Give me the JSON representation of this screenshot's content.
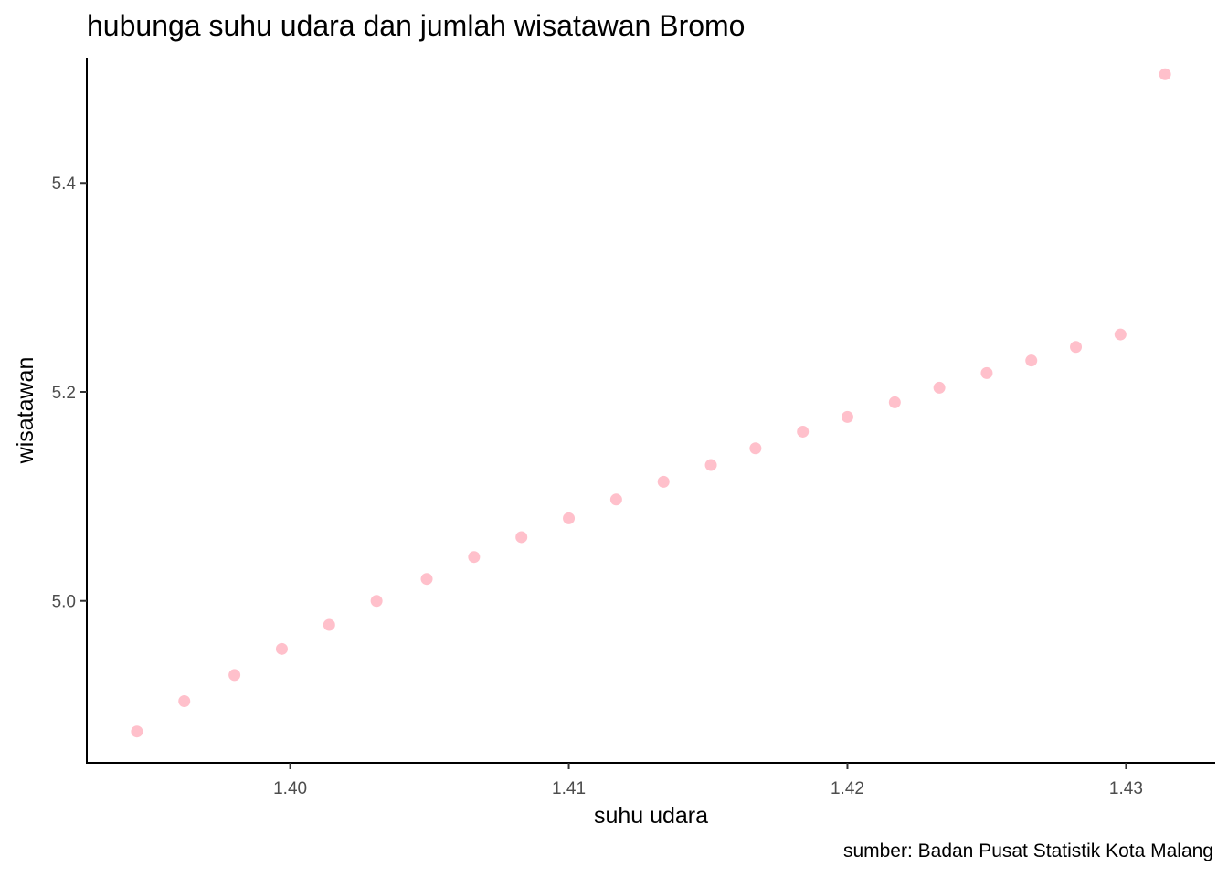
{
  "chart_data": {
    "type": "scatter",
    "title": "hubunga suhu udara dan jumlah wisatawan Bromo",
    "caption": "sumber: Badan Pusat Statistik Kota Malang",
    "xlabel": "suhu udara",
    "ylabel": "wisatawan",
    "xlim": [
      1.3927,
      1.4332
    ],
    "ylim": [
      4.845,
      5.52
    ],
    "xticks": [
      1.4,
      1.41,
      1.42,
      1.43
    ],
    "xtick_labels": [
      "1.40",
      "1.41",
      "1.42",
      "1.43"
    ],
    "yticks": [
      5.0,
      5.2,
      5.4
    ],
    "ytick_labels": [
      "5.0",
      "5.2",
      "5.4"
    ],
    "grid": false,
    "point_color": "#FFC0CB",
    "points": [
      {
        "x": 1.3945,
        "y": 4.875
      },
      {
        "x": 1.3962,
        "y": 4.904
      },
      {
        "x": 1.398,
        "y": 4.929
      },
      {
        "x": 1.3997,
        "y": 4.954
      },
      {
        "x": 1.4014,
        "y": 4.977
      },
      {
        "x": 1.4031,
        "y": 5.0
      },
      {
        "x": 1.4049,
        "y": 5.021
      },
      {
        "x": 1.4066,
        "y": 5.042
      },
      {
        "x": 1.4083,
        "y": 5.061
      },
      {
        "x": 1.41,
        "y": 5.079
      },
      {
        "x": 1.4117,
        "y": 5.097
      },
      {
        "x": 1.4134,
        "y": 5.114
      },
      {
        "x": 1.4151,
        "y": 5.13
      },
      {
        "x": 1.4167,
        "y": 5.146
      },
      {
        "x": 1.4184,
        "y": 5.162
      },
      {
        "x": 1.42,
        "y": 5.176
      },
      {
        "x": 1.4217,
        "y": 5.19
      },
      {
        "x": 1.4233,
        "y": 5.204
      },
      {
        "x": 1.425,
        "y": 5.218
      },
      {
        "x": 1.4266,
        "y": 5.23
      },
      {
        "x": 1.4282,
        "y": 5.243
      },
      {
        "x": 1.4298,
        "y": 5.255
      },
      {
        "x": 1.4314,
        "y": 5.504
      }
    ]
  }
}
